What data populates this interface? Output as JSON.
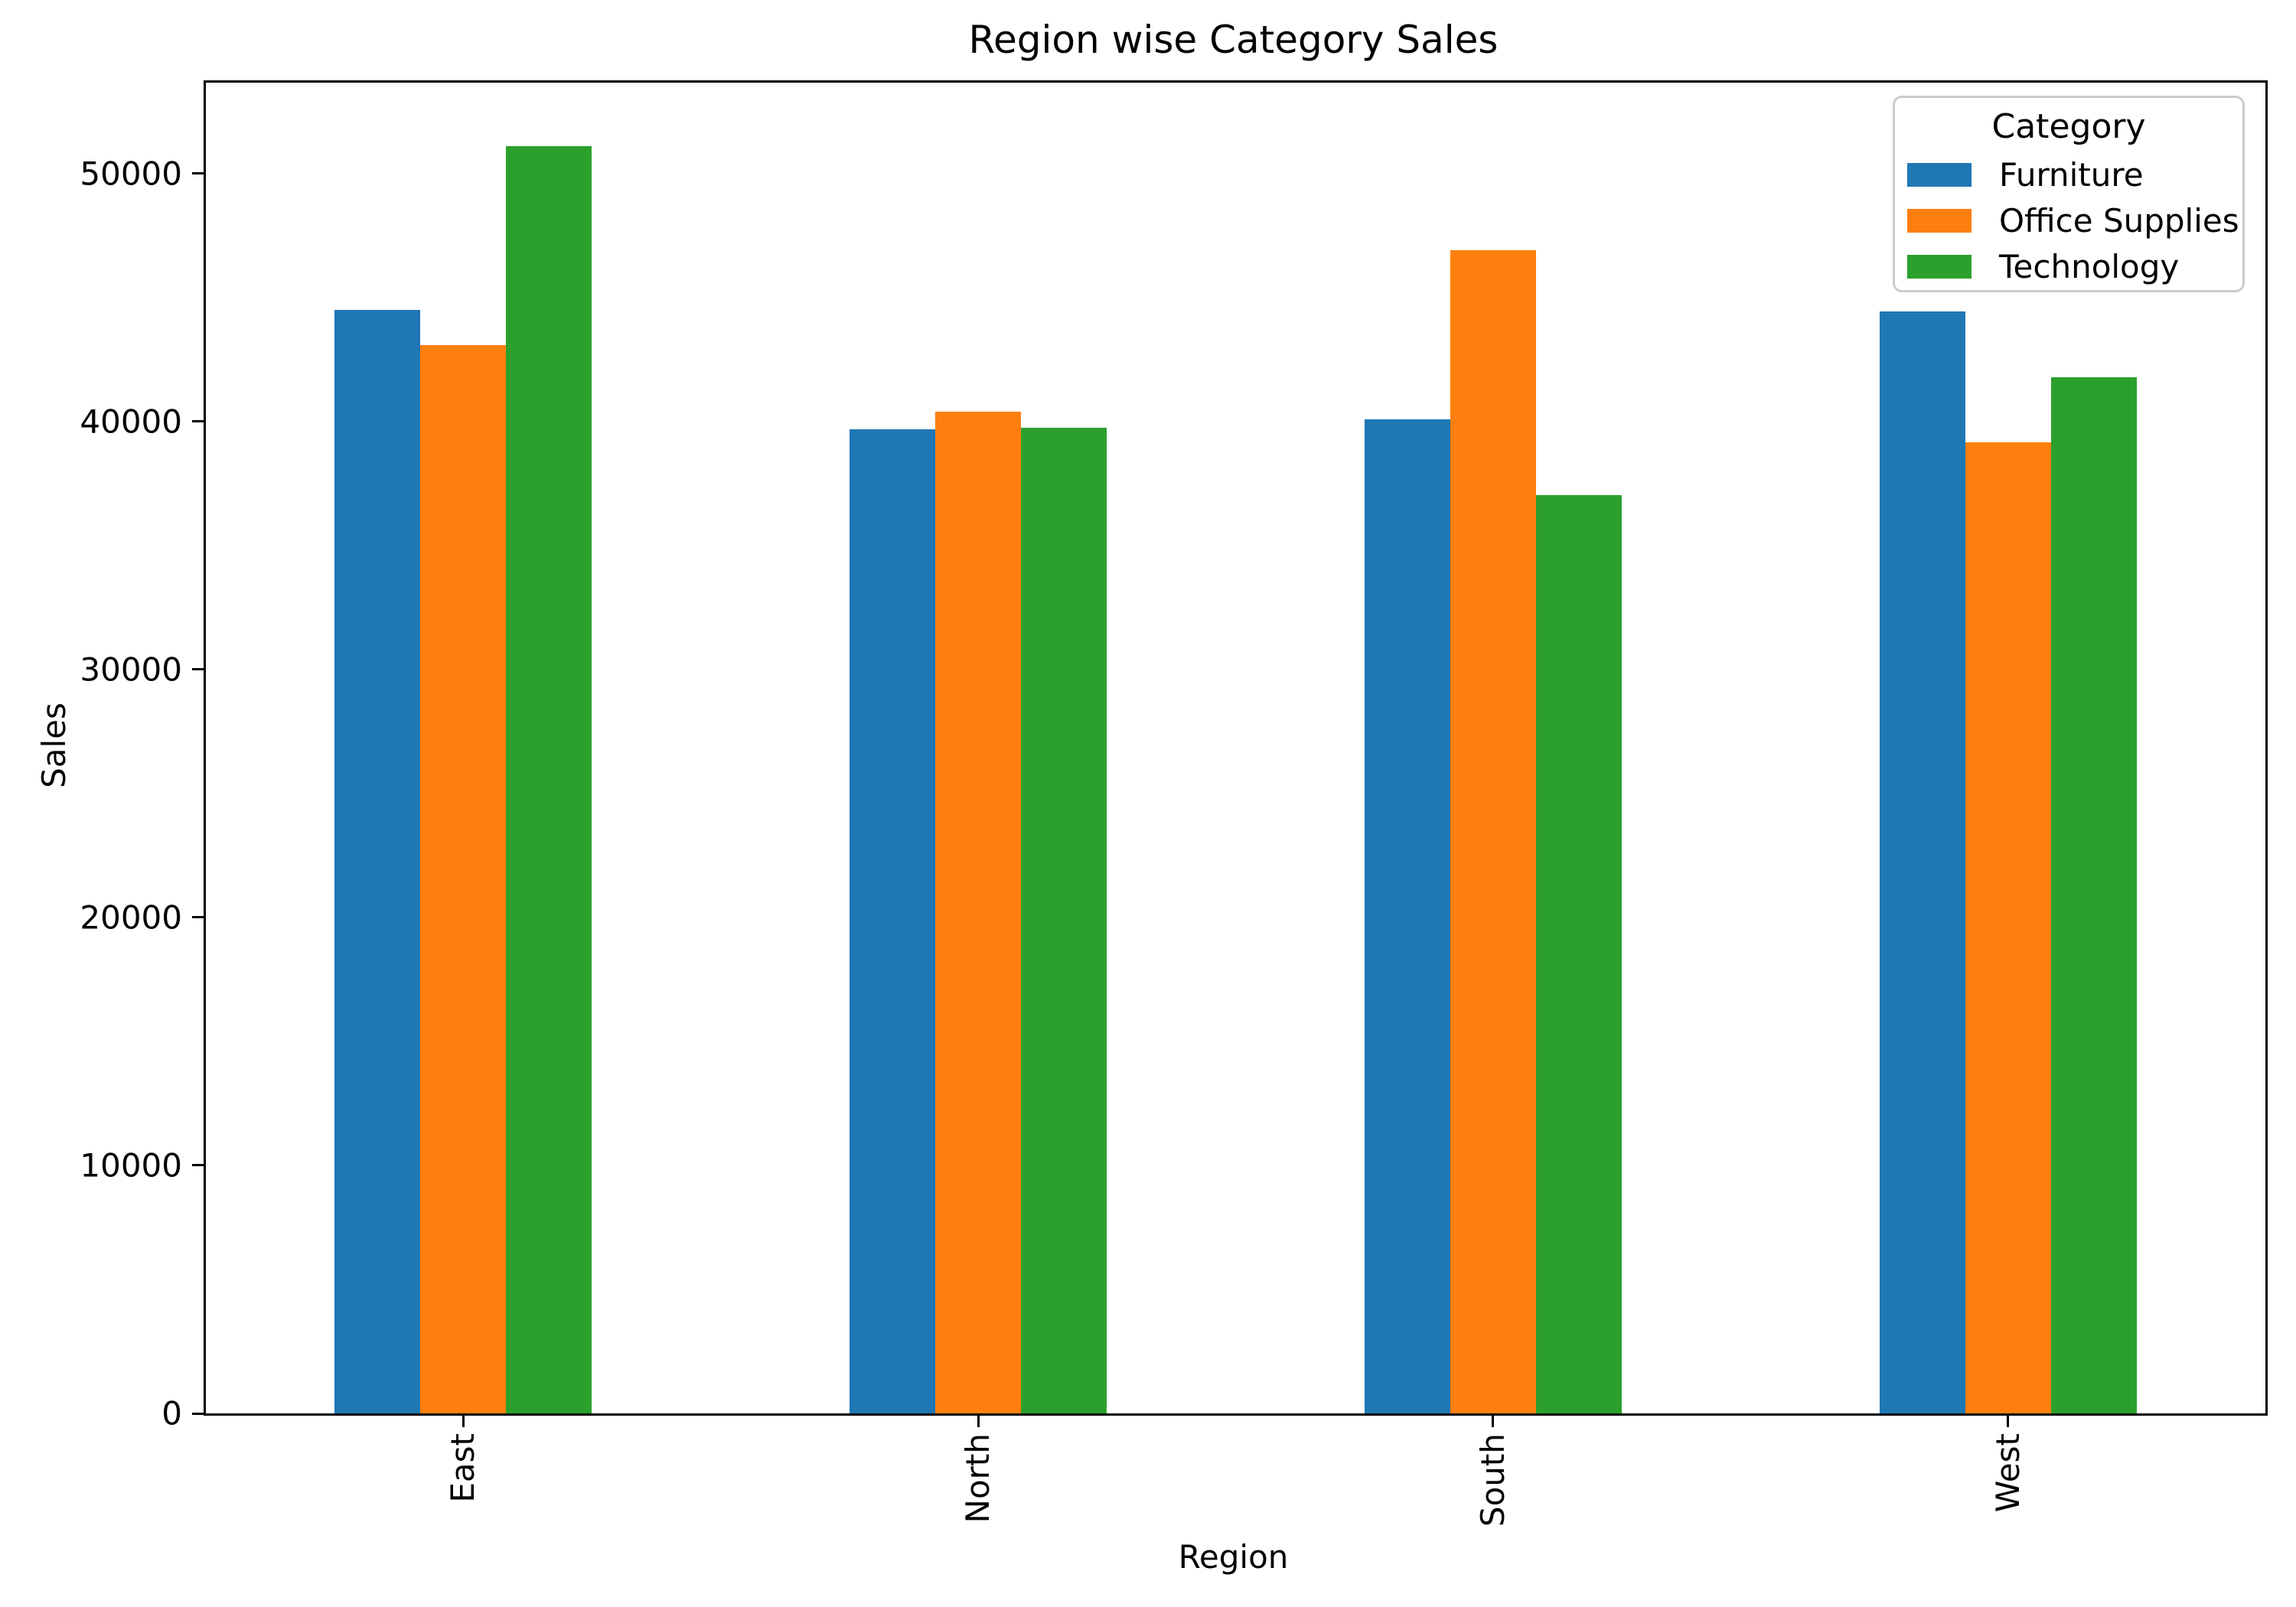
{
  "figure": {
    "background": "#ffffff",
    "spine_color": "#000000"
  },
  "chart_data": {
    "type": "bar",
    "title": "Region wise Category Sales",
    "xlabel": "Region",
    "ylabel": "Sales",
    "legend_title": "Category",
    "legend_position": "upper right",
    "grid": false,
    "categories": [
      "East",
      "North",
      "South",
      "West"
    ],
    "series": [
      {
        "name": "Furniture",
        "color": "#1f77b4",
        "values": [
          44500,
          39700,
          40100,
          44450
        ]
      },
      {
        "name": "Office Supplies",
        "color": "#ff7f0e",
        "values": [
          43100,
          40400,
          46900,
          39150
        ]
      },
      {
        "name": "Technology",
        "color": "#2ca02c",
        "values": [
          51100,
          39750,
          37050,
          41800
        ]
      }
    ],
    "ylim": [
      0,
      53670
    ],
    "yticks": [
      0,
      10000,
      20000,
      30000,
      40000,
      50000
    ],
    "xtick_rotation_degrees": 90
  }
}
